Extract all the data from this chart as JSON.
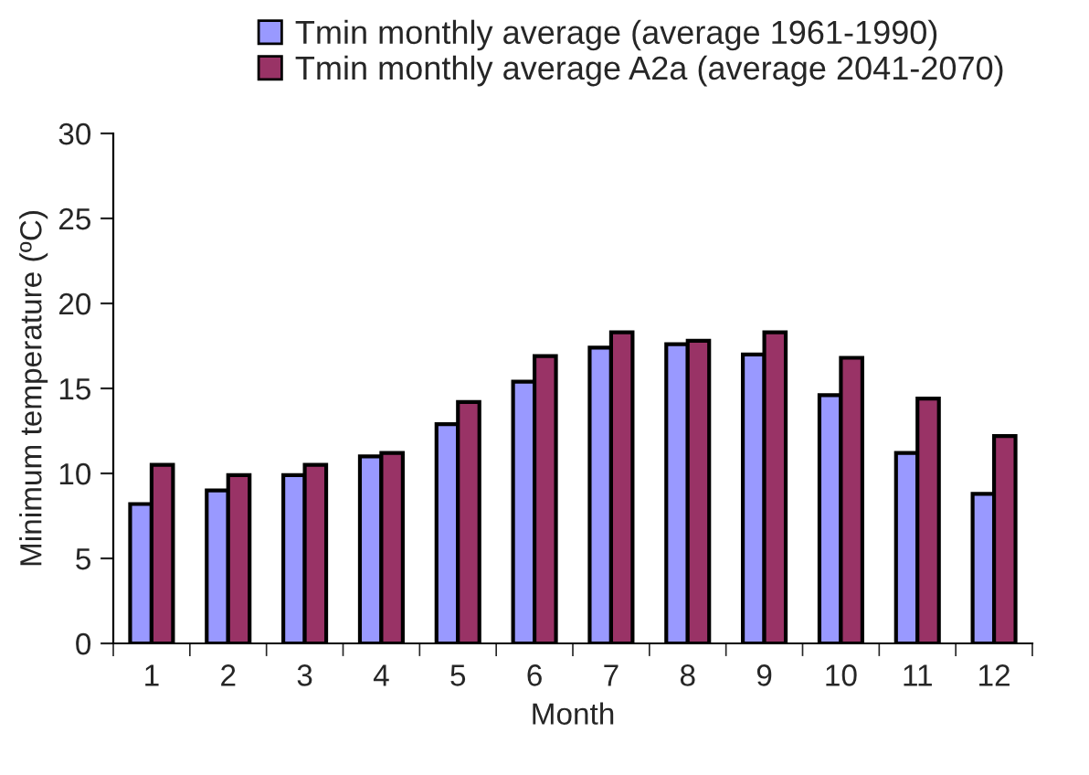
{
  "chart_data": {
    "type": "bar",
    "xlabel": "Month",
    "ylabel": "Minimum temperature (ºC)",
    "categories": [
      "1",
      "2",
      "3",
      "4",
      "5",
      "6",
      "7",
      "8",
      "9",
      "10",
      "11",
      "12"
    ],
    "series": [
      {
        "name": "Tmin monthly average (average 1961-1990)",
        "color": "#9999ff",
        "values": [
          8.2,
          9.0,
          9.9,
          11.0,
          12.9,
          15.4,
          17.4,
          17.6,
          17.0,
          14.6,
          11.2,
          8.8
        ]
      },
      {
        "name": "Tmin monthly average A2a (average 2041-2070)",
        "color": "#993366",
        "values": [
          10.5,
          9.9,
          10.5,
          11.2,
          14.2,
          16.9,
          18.3,
          17.8,
          18.3,
          16.8,
          14.4,
          12.2
        ]
      }
    ],
    "ylim": [
      0,
      30
    ],
    "yticks": [
      0,
      5,
      10,
      15,
      20,
      25,
      30
    ],
    "grid": false,
    "legend": "top"
  }
}
